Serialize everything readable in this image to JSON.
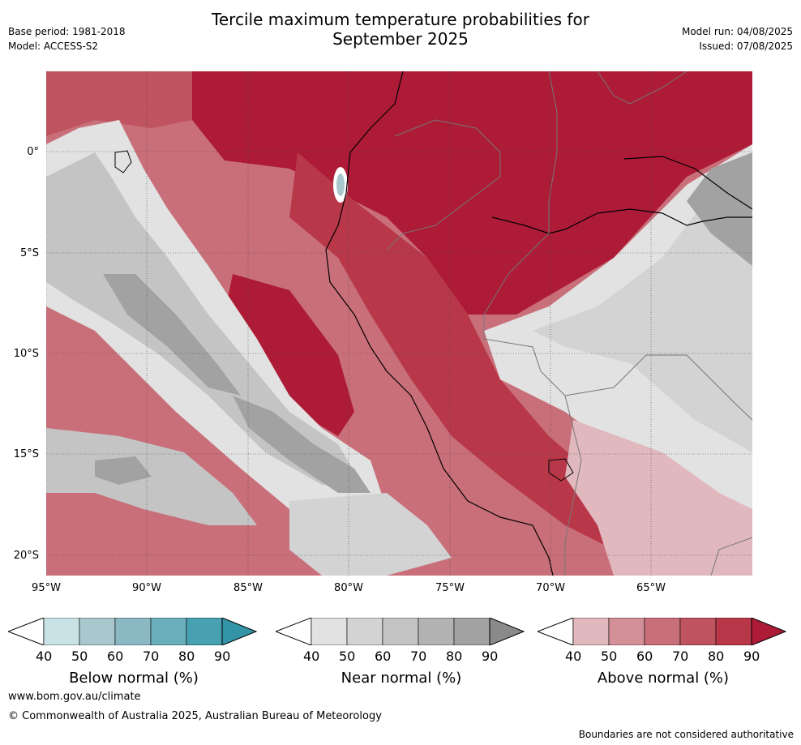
{
  "title_line1": "Tercile maximum temperature probabilities for",
  "title_line2": "September 2025",
  "meta": {
    "base_period": "Base period: 1981-2018",
    "model": "Model: ACCESS-S2",
    "model_run": "Model run: 04/08/2025",
    "issued": "Issued: 07/08/2025"
  },
  "map": {
    "lat_labels": [
      "0°",
      "5°S",
      "10°S",
      "15°S",
      "20°S"
    ],
    "lon_labels": [
      "95°W",
      "90°W",
      "85°W",
      "80°W",
      "75°W",
      "70°W",
      "65°W"
    ],
    "colors": {
      "above_40": "#e0b8bd",
      "above_50": "#d49099",
      "above_60": "#c96f7a",
      "above_70": "#bf535f",
      "above_80": "#b8384a",
      "above_90": "#ad1b37",
      "near_40": "#e2e2e2",
      "near_50": "#d3d3d3",
      "near_60": "#c2c2c2",
      "near_70": "#b3b3b3",
      "near_80": "#a2a2a2",
      "below_50": "#a9c8ce"
    }
  },
  "colorbars": [
    {
      "title": "Below normal (%)",
      "ticks": [
        "40",
        "50",
        "60",
        "70",
        "80",
        "90"
      ],
      "colors": [
        "#c9e2e6",
        "#a9c8ce",
        "#8ab9c4",
        "#6baebb",
        "#47a1b1",
        "#3394a8"
      ]
    },
    {
      "title": "Near normal (%)",
      "ticks": [
        "40",
        "50",
        "60",
        "70",
        "80",
        "90"
      ],
      "colors": [
        "#e2e2e2",
        "#d3d3d3",
        "#c4c4c4",
        "#b3b3b3",
        "#a2a2a2",
        "#8a8a8a"
      ]
    },
    {
      "title": "Above normal (%)",
      "ticks": [
        "40",
        "50",
        "60",
        "70",
        "80",
        "90"
      ],
      "colors": [
        "#e0b8bd",
        "#d49099",
        "#c96f7a",
        "#bf535f",
        "#b8384a",
        "#ad1b37"
      ]
    }
  ],
  "footer": {
    "url": "www.bom.gov.au/climate",
    "copyright": "© Commonwealth of Australia 2025, Australian Bureau of Meteorology",
    "note": "Boundaries are not considered authoritative"
  }
}
